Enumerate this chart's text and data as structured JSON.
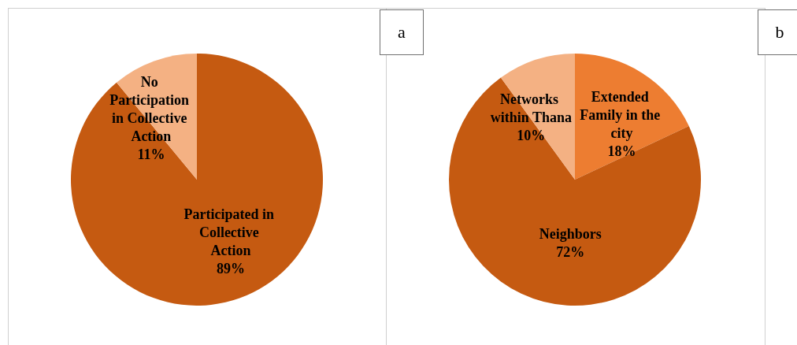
{
  "chart_data": [
    {
      "type": "pie",
      "categories": [
        "Participated in Collective Action",
        "No Participation in Collective Action"
      ],
      "values": [
        89,
        11
      ],
      "colors": [
        "#c55a11",
        "#f4b183"
      ],
      "value_labels": [
        "89%",
        "11%"
      ],
      "legend": false,
      "annotations": [
        "a"
      ]
    },
    {
      "type": "pie",
      "categories": [
        "Extended Family in the city",
        "Neighbors",
        "Networks within Thana"
      ],
      "values": [
        18,
        72,
        10
      ],
      "colors": [
        "#ed7d31",
        "#c55a11",
        "#f4b183"
      ],
      "value_labels": [
        "18%",
        "72%",
        "10%"
      ],
      "legend": false,
      "annotations": [
        "b"
      ]
    }
  ]
}
